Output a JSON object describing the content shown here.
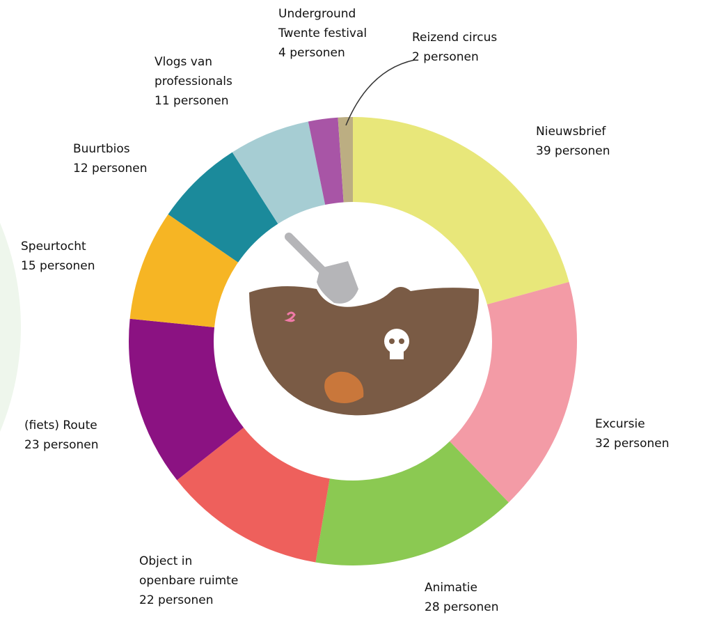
{
  "chart_data": {
    "type": "donut",
    "categories": [
      "Nieuwsbrief",
      "Excursie",
      "Animatie",
      "Object in\nopenbare ruimte",
      "(fiets) Route",
      "Speurtocht",
      "Buurtbios",
      "Vlogs van\nprofessionals",
      "Underground\nTwente festival",
      "Reizend circus"
    ],
    "values": [
      39,
      32,
      28,
      22,
      23,
      15,
      12,
      11,
      4,
      2
    ],
    "value_labels": [
      "39 personen",
      "32 personen",
      "28 personen",
      "22 personen",
      "23 personen",
      "15 personen",
      "12 personen",
      "11 personen",
      "4 personen",
      "2 personen"
    ],
    "colors": [
      "#e8e77a",
      "#f39ba6",
      "#8bc952",
      "#ee605c",
      "#8b1282",
      "#f6b524",
      "#1b8a9b",
      "#a6cdd3",
      "#a855a6",
      "#bcae82"
    ]
  }
}
